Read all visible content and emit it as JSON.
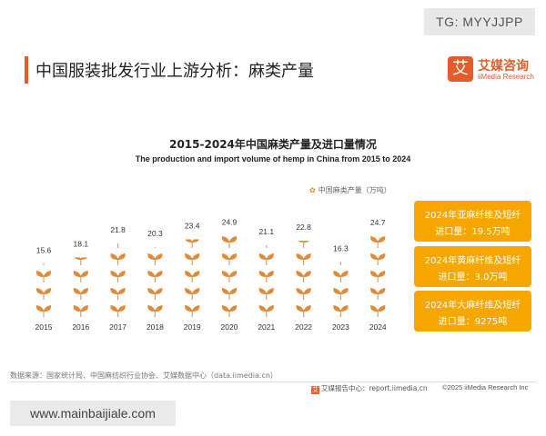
{
  "watermark_top": "TG: MYYJJPP",
  "watermark_bottom": "www.mainbaijiale.com",
  "page_title": "中国服装批发行业上游分析：麻类产量",
  "logo": {
    "mark": "艾",
    "name": "艾媒咨询",
    "sub": "iiMedia Research"
  },
  "colors": {
    "accent": "#e35d2a",
    "leaf": "#e38a36",
    "box": "#f5a700"
  },
  "chart_data": {
    "type": "bar",
    "title": "2015-2024年中国麻类产量及进口量情况",
    "subtitle": "The production and import volume of hemp in China from 2015 to 2024",
    "legend": "中国麻类产量（万吨）",
    "categories": [
      "2015",
      "2016",
      "2017",
      "2018",
      "2019",
      "2020",
      "2021",
      "2022",
      "2023",
      "2024"
    ],
    "series": [
      {
        "name": "中国麻类产量（万吨）",
        "values": [
          15.6,
          18.1,
          21.8,
          20.3,
          23.4,
          24.9,
          21.1,
          22.8,
          16.3,
          24.7
        ]
      }
    ],
    "ylim": [
      0,
      25
    ]
  },
  "side_boxes": [
    {
      "line1": "2024年亚麻纤维及短纤",
      "line2": "进口量：19.5万吨"
    },
    {
      "line1": "2024年黄麻纤维及短纤",
      "line2": "进口量：3.0万吨"
    },
    {
      "line1": "2024年大麻纤维及短纤",
      "line2": "进口量：9275吨"
    }
  ],
  "source": "数据来源：国家统计局、中国麻纺织行业协会、艾媒数据中心（data.iimedia.cn）",
  "footer": {
    "report_mark": "艾",
    "report": "艾媒报告中心：report.iimedia.cn",
    "copyright": "©2025  iiMedia Research  Inc"
  }
}
